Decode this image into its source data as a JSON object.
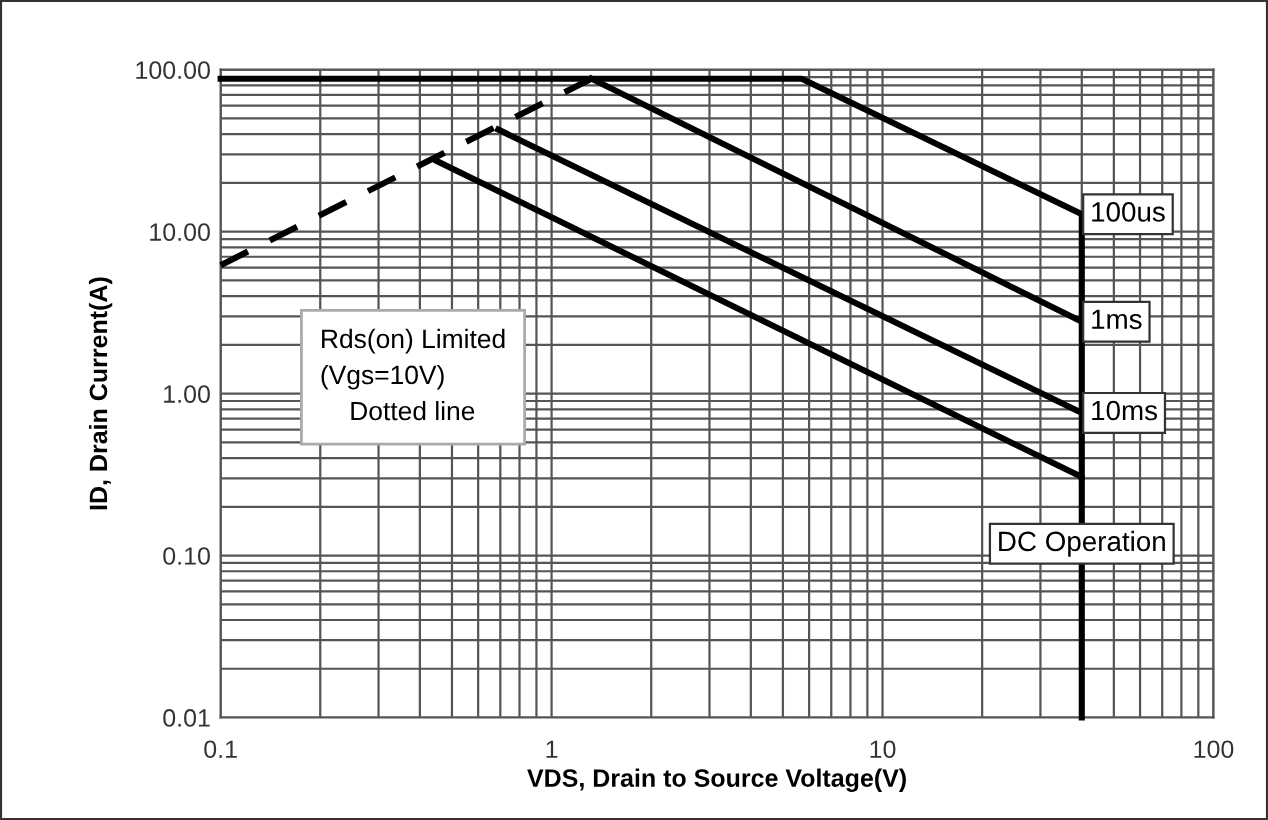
{
  "chart_data": {
    "type": "line",
    "xlabel": "VDS, Drain to Source Voltage(V)",
    "ylabel": "ID, Drain Current(A)",
    "log": "xy",
    "xlim": [
      0.1,
      100
    ],
    "ylim": [
      0.01,
      100
    ],
    "xticks": [
      0.1,
      1,
      10,
      100
    ],
    "yticks": [
      {
        "value": 0.01,
        "label": "0.01"
      },
      {
        "value": 0.1,
        "label": "0.10"
      },
      {
        "value": 1,
        "label": "1.00"
      },
      {
        "value": 10,
        "label": "10.00"
      },
      {
        "value": 100,
        "label": "100.00"
      }
    ],
    "grid": true,
    "marker": "none",
    "series": [
      {
        "color": "#000000",
        "line_style": "dashed",
        "x": [
          0.1,
          1.32
        ],
        "values": [
          6.2,
          88
        ]
      },
      {
        "color": "#000000",
        "line_style": "solid",
        "x": [
          40,
          40
        ],
        "values": [
          12.8,
          0.305
        ]
      },
      {
        "name": "100us",
        "color": "#000000",
        "line_style": "solid",
        "x": [
          0.1,
          5.7,
          40
        ],
        "values": [
          88,
          88,
          12.8
        ]
      },
      {
        "name": "1ms",
        "color": "#000000",
        "line_style": "solid",
        "x": [
          1.32,
          40
        ],
        "values": [
          88,
          2.78
        ]
      },
      {
        "name": "10ms",
        "color": "#000000",
        "line_style": "solid",
        "x": [
          0.69,
          40
        ],
        "values": [
          42.7,
          0.76
        ]
      },
      {
        "name": "DC Operation",
        "color": "#000000",
        "line_style": "solid",
        "x": [
          0.45,
          40,
          40
        ],
        "values": [
          27.3,
          0.305,
          0.01
        ]
      }
    ],
    "annotations": [
      "Rds(on) Limited\n(Vgs=10V)\n    Dotted line"
    ]
  }
}
